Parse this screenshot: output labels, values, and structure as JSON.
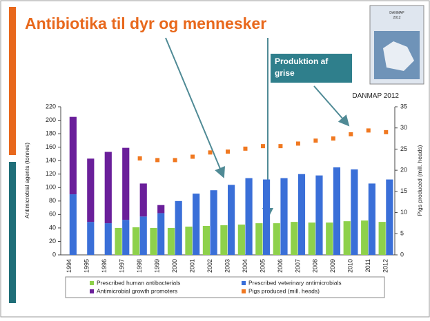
{
  "slide": {
    "title": "Antibiotika til dyr og mennesker",
    "callout": [
      "Produktion af",
      "grise"
    ],
    "cover": [
      "DANMAP",
      "2012"
    ]
  },
  "chart_data": {
    "type": "bar",
    "annotation": "DANMAP 2012",
    "y_label": "Antimicrobial agents (tonnes)",
    "y2_label": "Pigs produced (mill. heads)",
    "categories": [
      "1994",
      "1995",
      "1996",
      "1997",
      "1998",
      "1999",
      "2000",
      "2001",
      "2002",
      "2003",
      "2004",
      "2005",
      "2006",
      "2007",
      "2008",
      "2009",
      "2010",
      "2011",
      "2012"
    ],
    "series": [
      {
        "name": "Prescribed human antibacterials",
        "color": "#8ed14b",
        "type": "bar",
        "group": 0,
        "values": [
          null,
          null,
          null,
          40,
          41,
          40,
          40,
          42,
          43,
          44,
          45,
          47,
          47,
          49,
          48,
          48,
          50,
          51,
          49
        ]
      },
      {
        "name": "Prescribed veterinary antimicrobials",
        "color": "#3a6fd8",
        "type": "bar",
        "group": 1,
        "values": [
          90,
          49,
          47,
          52,
          57,
          62,
          80,
          91,
          96,
          104,
          114,
          112,
          114,
          120,
          118,
          130,
          127,
          106,
          112
        ]
      },
      {
        "name": "Antimicrobial growth promoters",
        "color": "#6a1f9a",
        "type": "bar",
        "group": 1,
        "values": [
          115,
          94,
          106,
          107,
          49,
          12,
          null,
          null,
          null,
          null,
          null,
          null,
          null,
          null,
          null,
          null,
          null,
          null,
          null
        ]
      },
      {
        "name": "Pigs produced (mill. heads)",
        "color": "#f07820",
        "type": "scatter",
        "axis": "y2",
        "values": [
          null,
          null,
          null,
          null,
          22.8,
          22.4,
          22.4,
          23.2,
          24.2,
          24.4,
          25.1,
          25.7,
          25.7,
          26.3,
          27.0,
          27.5,
          28.5,
          29.4,
          29.0
        ]
      }
    ],
    "ylim": [
      0,
      220
    ],
    "yticks": [
      0,
      20,
      40,
      60,
      80,
      100,
      120,
      140,
      160,
      180,
      200,
      220
    ],
    "y2lim": [
      0,
      35
    ],
    "y2ticks": [
      0,
      5,
      10,
      15,
      20,
      25,
      30,
      35
    ]
  }
}
